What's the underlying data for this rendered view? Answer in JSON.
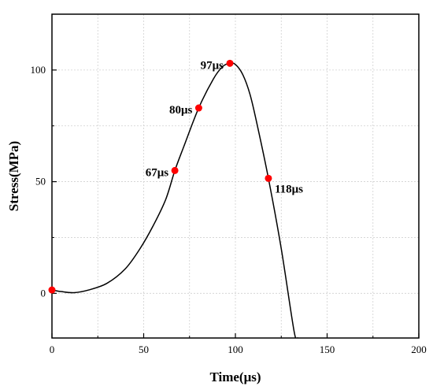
{
  "chart_data": {
    "type": "line",
    "xlabel": "Time(μs)",
    "ylabel": "Stress(MPa)",
    "xlim": [
      0,
      200
    ],
    "ylim": [
      -20,
      125
    ],
    "xticks": [
      0,
      50,
      100,
      150,
      200
    ],
    "yticks": [
      0,
      50,
      100
    ],
    "grid": true,
    "colors": {
      "line": "#000000",
      "marker": "#ff0000",
      "grid": "#d0d0d0"
    },
    "series": [
      {
        "x": [
          0,
          5,
          12,
          20,
          30,
          40,
          48,
          55,
          62,
          67,
          72,
          80,
          88,
          93,
          97,
          100,
          104,
          108,
          112,
          118,
          125,
          132,
          134
        ],
        "values": [
          1.5,
          0.8,
          0.3,
          1.5,
          4.5,
          11,
          20,
          30,
          42,
          55,
          66,
          83,
          96,
          101.5,
          103,
          102.5,
          98,
          89,
          75,
          51.5,
          20,
          -17,
          -20
        ]
      }
    ],
    "markers": [
      {
        "x": 0,
        "y": 1.5
      },
      {
        "x": 67,
        "y": 55
      },
      {
        "x": 80,
        "y": 83
      },
      {
        "x": 97,
        "y": 103
      },
      {
        "x": 118,
        "y": 51.5
      }
    ],
    "annotations": [
      {
        "text": "67μs",
        "x": 67,
        "y": 55,
        "side": "left"
      },
      {
        "text": "80μs",
        "x": 80,
        "y": 83,
        "side": "left"
      },
      {
        "text": "97μs",
        "x": 97,
        "y": 103,
        "side": "left"
      },
      {
        "text": "118μs",
        "x": 118,
        "y": 51.5,
        "side": "right"
      }
    ]
  }
}
